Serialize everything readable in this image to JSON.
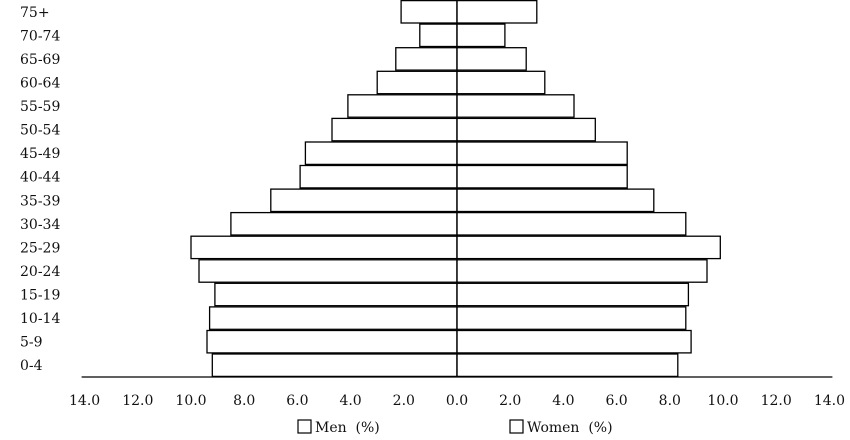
{
  "chart_data": {
    "type": "bar",
    "orientation": "horizontal",
    "layout": "population-pyramid",
    "categories": [
      "0-4",
      "5-9",
      "10-14",
      "15-19",
      "20-24",
      "25-29",
      "30-34",
      "35-39",
      "40-44",
      "45-49",
      "50-54",
      "55-59",
      "60-64",
      "65-69",
      "70-74",
      "75+"
    ],
    "series": [
      {
        "name": "Men  (%)",
        "side": "left",
        "values": [
          9.2,
          9.4,
          9.3,
          9.1,
          9.7,
          10.0,
          8.5,
          7.0,
          5.9,
          5.7,
          4.7,
          4.1,
          3.0,
          2.3,
          1.4,
          2.1
        ]
      },
      {
        "name": "Women  (%)",
        "side": "right",
        "values": [
          8.3,
          8.8,
          8.6,
          8.7,
          9.4,
          9.9,
          8.6,
          7.4,
          6.4,
          6.4,
          5.2,
          4.4,
          3.3,
          2.6,
          1.8,
          3.0
        ]
      }
    ],
    "x_ticks": [
      "14.0",
      "12.0",
      "10.0",
      "8.0",
      "6.0",
      "4.0",
      "2.0",
      "0.0",
      "2.0",
      "4.0",
      "6.0",
      "8.0",
      "10.0",
      "12.0",
      "14.0"
    ],
    "xlim": [
      -14,
      14
    ],
    "bar_fill": "#ffffff",
    "bar_stroke": "#000000",
    "legend_placement": "bottom-center",
    "grid": false,
    "title": "",
    "xlabel": "",
    "ylabel": ""
  }
}
